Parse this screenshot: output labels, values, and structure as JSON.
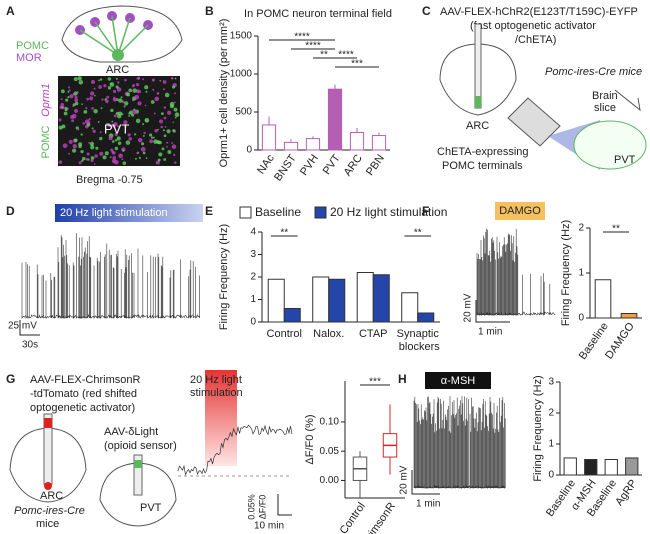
{
  "chart_data": [
    {
      "type": "bar",
      "title": "In POMC neuron terminal field",
      "y_label": "Oprm1+ cell density (per mm²)",
      "categories": [
        "NAc",
        "BNST",
        "PVH",
        "PVT",
        "ARC",
        "PBN"
      ],
      "values": [
        330,
        100,
        150,
        800,
        230,
        190
      ],
      "errors": [
        110,
        40,
        30,
        60,
        60,
        40
      ],
      "colors": [
        "#ffffff",
        "#ffffff",
        "#ffffff",
        "#b45fb4",
        "#ffffff",
        "#ffffff"
      ],
      "edge_color": "#b45fb4",
      "ylim": [
        0,
        1500
      ],
      "yticks": [
        0,
        500,
        1000,
        1500
      ],
      "brackets": [
        {
          "label": "****",
          "from": 0,
          "to": 3
        },
        {
          "label": "****",
          "from": 1,
          "to": 3
        },
        {
          "label": "**",
          "from": 2,
          "to": 3
        },
        {
          "label": "****",
          "from": 3,
          "to": 4
        },
        {
          "label": "***",
          "from": 3,
          "to": 5
        }
      ]
    },
    {
      "type": "grouped_bar",
      "y_label": "Firing Frequency (Hz)",
      "categories": [
        "Control",
        "Nalox.",
        "CTAP",
        "Synaptic blockers"
      ],
      "series": [
        {
          "name": "Baseline",
          "color": "#ffffff",
          "values": [
            1.9,
            2.0,
            2.2,
            1.3
          ]
        },
        {
          "name": "20 Hz light stimulation",
          "color": "#2346a8",
          "values": [
            0.6,
            1.9,
            2.1,
            0.4
          ]
        }
      ],
      "ylim": [
        0,
        4
      ],
      "yticks": [
        0,
        1,
        2,
        3,
        4
      ],
      "brackets": [
        {
          "label": "**",
          "from": 0,
          "to": 0
        },
        {
          "label": "**",
          "from": 3,
          "to": 3
        }
      ]
    },
    {
      "type": "bar",
      "y_label": "Firing Frequency (Hz)",
      "categories": [
        "Baseline",
        "DAMGO"
      ],
      "values": [
        0.85,
        0.1
      ],
      "colors": [
        "#ffffff",
        "#f0a040"
      ],
      "edge_color": "#333333",
      "ylim": [
        0,
        2
      ],
      "yticks": [
        0,
        1,
        2
      ],
      "brackets": [
        {
          "label": "**",
          "from": 0,
          "to": 1
        }
      ]
    },
    {
      "type": "box",
      "y_label": "ΔF/F0 (%)",
      "categories": [
        "Control",
        "ChrimsonR"
      ],
      "boxes": [
        {
          "min": -0.03,
          "q1": 0.0,
          "median": 0.02,
          "q3": 0.04,
          "max": 0.05
        },
        {
          "min": 0.01,
          "q1": 0.04,
          "median": 0.06,
          "q3": 0.08,
          "max": 0.13
        }
      ],
      "colors": [
        "#555555",
        "#d62728"
      ],
      "ylim": [
        -0.03,
        0.17
      ],
      "yticks": [
        {
          "value": 0,
          "label": "0.00"
        },
        {
          "value": 0.05,
          "label": "0.05"
        },
        {
          "value": 0.1,
          "label": "0.10"
        }
      ],
      "brackets": [
        {
          "label": "***",
          "from": 0,
          "to": 1
        }
      ]
    },
    {
      "type": "bar",
      "y_label": "Firing Frequency (Hz)",
      "categories": [
        "Baseline",
        "α-MSH",
        "Baseline",
        "AgRP"
      ],
      "values": [
        0.55,
        0.5,
        0.5,
        0.55
      ],
      "colors": [
        "#ffffff",
        "#222222",
        "#ffffff",
        "#999999"
      ],
      "edge_color": "#333333",
      "ylim": [
        0,
        3
      ],
      "yticks": [
        0,
        1,
        2,
        3
      ]
    }
  ],
  "diagrams": {
    "panel_labels": [
      "A",
      "B",
      "C",
      "D",
      "E",
      "F",
      "G",
      "H"
    ],
    "a": [
      "POMC",
      "MOR",
      "ARC",
      "Oprm1",
      "POMC",
      "PVT",
      "Bregma -0.75"
    ],
    "c": [
      "AAV-FLEX-hChR2(E123T/T159C)-EYFP",
      "(fast optogenetic activator",
      "/ChETA)",
      "Pomc-ires-Cre mice",
      "ARC",
      "Brain",
      "slice",
      "ChETA-expressing",
      "POMC terminals",
      "PVT"
    ],
    "d": [
      "20 Hz light stimulation",
      "25 mV",
      "30s"
    ],
    "f": [
      "DAMGO",
      "20 mV",
      "1 min"
    ],
    "g": [
      "AAV-FLEX-ChrimsonR",
      "-tdTomato (red shifted",
      "optogenetic activator)",
      "AAV-δLight",
      "(opioid sensor)",
      "ARC",
      "Pomc-ires-Cre",
      "mice",
      "PVT",
      "20 Hz light",
      "stimulation",
      "0.05%",
      "ΔF/F0",
      "10 min"
    ],
    "h": [
      "α-MSH",
      "20 mV",
      "1 min"
    ]
  }
}
